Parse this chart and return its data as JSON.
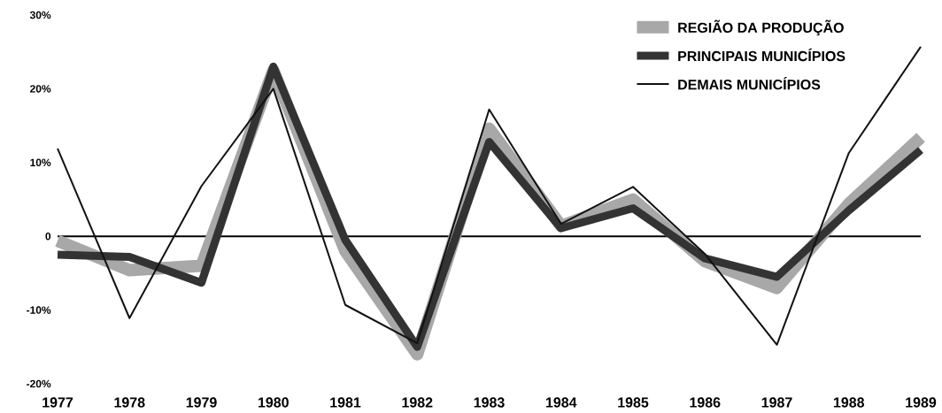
{
  "chart_data": {
    "type": "line",
    "categories": [
      "1977",
      "1978",
      "1979",
      "1980",
      "1981",
      "1982",
      "1983",
      "1984",
      "1985",
      "1986",
      "1987",
      "1988",
      "1989"
    ],
    "series": [
      {
        "name": "REGIÃO DA PRODUÇÃO",
        "color": "#a8a8a8",
        "values": [
          -0.6,
          -4.6,
          -4.0,
          22.5,
          -2.0,
          -16.0,
          14.6,
          1.4,
          5.0,
          -3.4,
          -7.0,
          4.4,
          13.4
        ]
      },
      {
        "name": "PRINCIPAIS MUNICÍPIOS",
        "color": "#333333",
        "values": [
          -2.5,
          -2.8,
          -6.3,
          23.0,
          -0.5,
          -15.0,
          12.8,
          1.1,
          3.8,
          -3.0,
          -5.5,
          3.5,
          11.7
        ]
      },
      {
        "name": "DEMAIS MUNICÍPIOS",
        "color": "#111111",
        "values": [
          11.9,
          -11.1,
          6.8,
          20.0,
          -9.3,
          -14.5,
          17.2,
          1.7,
          6.7,
          -2.4,
          -14.7,
          11.3,
          25.7
        ]
      }
    ],
    "ylim": [
      -20,
      30
    ],
    "yticks": [
      {
        "value": 30,
        "label": "30%"
      },
      {
        "value": 20,
        "label": "20%"
      },
      {
        "value": 10,
        "label": "10%"
      },
      0,
      {
        "value": -10,
        "label": "-10%"
      },
      {
        "value": -20,
        "label": "-20%"
      }
    ],
    "ref_lines": [
      {
        "axis": "y",
        "value": 0,
        "color": "#000000"
      }
    ],
    "legend": "top right",
    "marker": "none",
    "line_style": "solid"
  }
}
